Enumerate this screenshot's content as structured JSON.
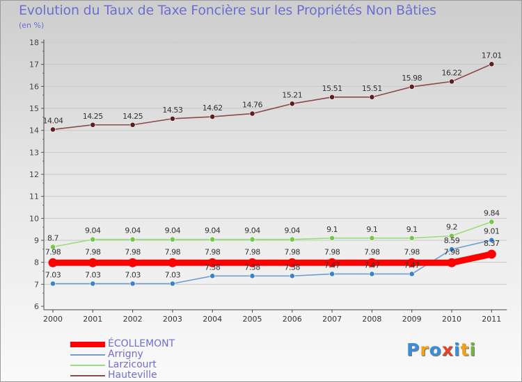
{
  "chart_data": {
    "type": "line",
    "title": "Evolution du Taux de Taxe Foncière sur les Propriétés Non Bâties",
    "ylabel": "(en %)",
    "xlabel": "",
    "ylim": [
      6,
      18
    ],
    "yticks": [
      "6",
      "7",
      "8",
      "9",
      "10",
      "11",
      "12",
      "13",
      "14",
      "15",
      "16",
      "17",
      "18"
    ],
    "categories": [
      "2000",
      "2001",
      "2002",
      "2003",
      "2004",
      "2005",
      "2006",
      "2007",
      "2008",
      "2009",
      "2010",
      "2011"
    ],
    "series": [
      {
        "name": "ÉCOLLEMONT",
        "color": "#ff0000",
        "marker": "#ff0000",
        "values": [
          7.98,
          7.98,
          7.98,
          7.98,
          7.98,
          7.98,
          7.98,
          7.98,
          7.98,
          7.98,
          7.98,
          8.37
        ],
        "labels": [
          "7.98",
          "7.98",
          "7.98",
          "7.98",
          "7.98",
          "7.98",
          "7.98",
          "7.98",
          "7.98",
          "7.98",
          "7.98",
          "8.37"
        ]
      },
      {
        "name": "Arrigny",
        "color": "#6b9fd4",
        "marker": "#3d82c9",
        "values": [
          7.03,
          7.03,
          7.03,
          7.03,
          7.38,
          7.38,
          7.38,
          7.47,
          7.47,
          7.47,
          8.59,
          9.01
        ],
        "labels": [
          "7.03",
          "7.03",
          "7.03",
          "7.03",
          "7.38",
          "7.38",
          "7.38",
          "7.47",
          "7.47",
          "7.47",
          "8.59",
          "9.01"
        ]
      },
      {
        "name": "Larzicourt",
        "color": "#99dd77",
        "marker": "#77c64c",
        "values": [
          8.7,
          9.04,
          9.04,
          9.04,
          9.04,
          9.04,
          9.04,
          9.1,
          9.1,
          9.1,
          9.2,
          9.84
        ],
        "labels": [
          "8.7",
          "9.04",
          "9.04",
          "9.04",
          "9.04",
          "9.04",
          "9.04",
          "9.1",
          "9.1",
          "9.1",
          "9.2",
          "9.84"
        ]
      },
      {
        "name": "Hauteville",
        "color": "#8a4a4a",
        "marker": "#5c1f1f",
        "values": [
          14.04,
          14.25,
          14.25,
          14.53,
          14.62,
          14.76,
          15.21,
          15.51,
          15.51,
          15.98,
          16.22,
          17.01
        ],
        "labels": [
          "14.04",
          "14.25",
          "14.25",
          "14.53",
          "14.62",
          "14.76",
          "15.21",
          "15.51",
          "15.51",
          "15.98",
          "16.22",
          "17.01"
        ]
      }
    ]
  },
  "logo": {
    "letters": [
      "P",
      "r",
      "o",
      "x",
      "i",
      "t",
      "i"
    ],
    "colors": [
      "#3a8fd6",
      "#f0a21a",
      "#3a8fd6",
      "#e0442a",
      "#3a8fd6",
      "#f0a21a",
      "#70b540"
    ]
  }
}
